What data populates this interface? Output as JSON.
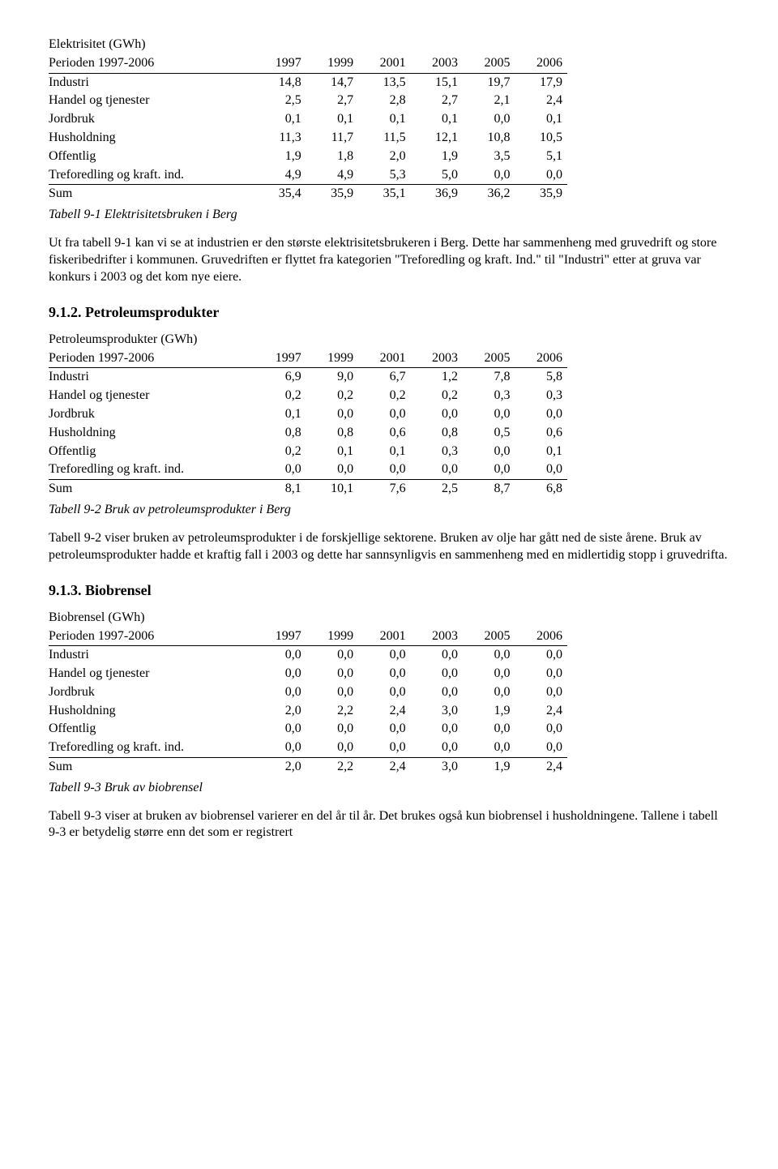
{
  "tables": {
    "elec": {
      "title_label": "Elektrisitet (GWh)",
      "period_label": "Perioden 1997-2006",
      "years": [
        "1997",
        "1999",
        "2001",
        "2003",
        "2005",
        "2006"
      ],
      "rows": [
        {
          "label": "Industri",
          "v": [
            "14,8",
            "14,7",
            "13,5",
            "15,1",
            "19,7",
            "17,9"
          ]
        },
        {
          "label": "Handel og tjenester",
          "v": [
            "2,5",
            "2,7",
            "2,8",
            "2,7",
            "2,1",
            "2,4"
          ]
        },
        {
          "label": "Jordbruk",
          "v": [
            "0,1",
            "0,1",
            "0,1",
            "0,1",
            "0,0",
            "0,1"
          ]
        },
        {
          "label": "Husholdning",
          "v": [
            "11,3",
            "11,7",
            "11,5",
            "12,1",
            "10,8",
            "10,5"
          ]
        },
        {
          "label": "Offentlig",
          "v": [
            "1,9",
            "1,8",
            "2,0",
            "1,9",
            "3,5",
            "5,1"
          ]
        },
        {
          "label": "Treforedling og kraft. ind.",
          "v": [
            "4,9",
            "4,9",
            "5,3",
            "5,0",
            "0,0",
            "0,0"
          ]
        }
      ],
      "sum_label": "Sum",
      "sum": [
        "35,4",
        "35,9",
        "35,1",
        "36,9",
        "36,2",
        "35,9"
      ],
      "caption": "Tabell 9-1 Elektrisitetsbruken i Berg"
    },
    "petro": {
      "title_label": "Petroleumsprodukter (GWh)",
      "period_label": "Perioden 1997-2006",
      "years": [
        "1997",
        "1999",
        "2001",
        "2003",
        "2005",
        "2006"
      ],
      "rows": [
        {
          "label": "Industri",
          "v": [
            "6,9",
            "9,0",
            "6,7",
            "1,2",
            "7,8",
            "5,8"
          ]
        },
        {
          "label": "Handel og tjenester",
          "v": [
            "0,2",
            "0,2",
            "0,2",
            "0,2",
            "0,3",
            "0,3"
          ]
        },
        {
          "label": "Jordbruk",
          "v": [
            "0,1",
            "0,0",
            "0,0",
            "0,0",
            "0,0",
            "0,0"
          ]
        },
        {
          "label": "Husholdning",
          "v": [
            "0,8",
            "0,8",
            "0,6",
            "0,8",
            "0,5",
            "0,6"
          ]
        },
        {
          "label": "Offentlig",
          "v": [
            "0,2",
            "0,1",
            "0,1",
            "0,3",
            "0,0",
            "0,1"
          ]
        },
        {
          "label": "Treforedling og kraft. ind.",
          "v": [
            "0,0",
            "0,0",
            "0,0",
            "0,0",
            "0,0",
            "0,0"
          ]
        }
      ],
      "sum_label": "Sum",
      "sum": [
        "8,1",
        "10,1",
        "7,6",
        "2,5",
        "8,7",
        "6,8"
      ],
      "caption": "Tabell 9-2 Bruk av petroleumsprodukter i Berg"
    },
    "bio": {
      "title_label": "Biobrensel (GWh)",
      "period_label": "Perioden 1997-2006",
      "years": [
        "1997",
        "1999",
        "2001",
        "2003",
        "2005",
        "2006"
      ],
      "rows": [
        {
          "label": "Industri",
          "v": [
            "0,0",
            "0,0",
            "0,0",
            "0,0",
            "0,0",
            "0,0"
          ]
        },
        {
          "label": "Handel og tjenester",
          "v": [
            "0,0",
            "0,0",
            "0,0",
            "0,0",
            "0,0",
            "0,0"
          ]
        },
        {
          "label": "Jordbruk",
          "v": [
            "0,0",
            "0,0",
            "0,0",
            "0,0",
            "0,0",
            "0,0"
          ]
        },
        {
          "label": "Husholdning",
          "v": [
            "2,0",
            "2,2",
            "2,4",
            "3,0",
            "1,9",
            "2,4"
          ]
        },
        {
          "label": "Offentlig",
          "v": [
            "0,0",
            "0,0",
            "0,0",
            "0,0",
            "0,0",
            "0,0"
          ]
        },
        {
          "label": "Treforedling og kraft. ind.",
          "v": [
            "0,0",
            "0,0",
            "0,0",
            "0,0",
            "0,0",
            "0,0"
          ]
        }
      ],
      "sum_label": "Sum",
      "sum": [
        "2,0",
        "2,2",
        "2,4",
        "3,0",
        "1,9",
        "2,4"
      ],
      "caption": "Tabell 9-3 Bruk av biobrensel"
    }
  },
  "paragraphs": {
    "p1": "Ut fra tabell 9-1 kan vi se at industrien er den største elektrisitetsbrukeren i Berg. Dette har sammenheng med gruvedrift og store fiskeribedrifter i kommunen. Gruvedriften er flyttet fra kategorien \"Treforedling og kraft. Ind.\" til \"Industri\" etter at gruva var konkurs i 2003 og det kom nye eiere.",
    "p2": "Tabell 9-2 viser bruken av petroleumsprodukter i de forskjellige sektorene. Bruken av olje har gått ned de siste årene. Bruk av petroleumsprodukter hadde et kraftig fall i 2003 og dette har sannsynligvis en sammenheng med en midlertidig stopp i gruvedrifta.",
    "p3": "Tabell 9-3 viser at bruken av biobrensel varierer en del år til år. Det brukes også kun biobrensel i husholdningene. Tallene i tabell 9-3 er betydelig større enn det som er registrert"
  },
  "headings": {
    "h912": "9.1.2. Petroleumsprodukter",
    "h913": "9.1.3. Biobrensel"
  }
}
